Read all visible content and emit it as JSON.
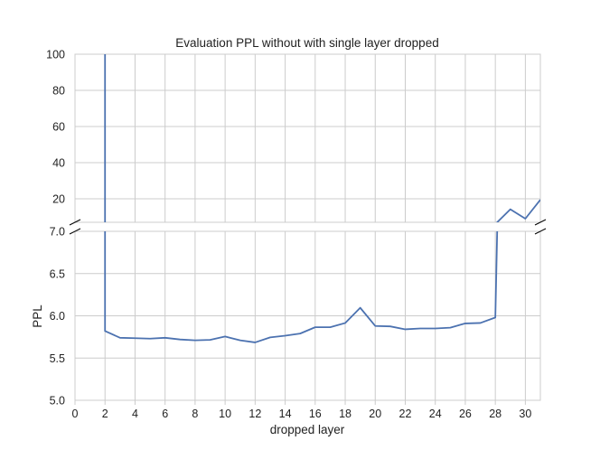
{
  "chart_data": {
    "type": "line",
    "title": "Evaluation PPL without with single layer dropped",
    "xlabel": "dropped layer",
    "ylabel": "PPL",
    "grid": true,
    "broken_y_axis": true,
    "x": [
      2,
      3,
      4,
      5,
      6,
      7,
      8,
      9,
      10,
      11,
      12,
      13,
      14,
      15,
      16,
      17,
      18,
      19,
      20,
      21,
      22,
      23,
      24,
      25,
      26,
      27,
      28,
      29,
      30,
      31
    ],
    "series": [
      {
        "color": "#4c72b0",
        "values": [
          5.82,
          5.74,
          5.735,
          5.73,
          5.74,
          5.72,
          5.71,
          5.715,
          5.755,
          5.71,
          5.685,
          5.745,
          5.765,
          5.79,
          5.865,
          5.865,
          5.915,
          6.095,
          5.88,
          5.875,
          5.84,
          5.85,
          5.85,
          5.86,
          5.91,
          5.915,
          5.98,
          14.2,
          9.0,
          19.5
        ]
      }
    ],
    "off_chart_value_at_x1": 100,
    "xlim": [
      0,
      31
    ],
    "x_ticks": [
      "0",
      "2",
      "4",
      "6",
      "8",
      "10",
      "12",
      "14",
      "16",
      "18",
      "20",
      "22",
      "24",
      "26",
      "28",
      "30"
    ],
    "top_panel": {
      "ylim": [
        7,
        100
      ],
      "y_ticks": [
        "20",
        "40",
        "60",
        "80",
        "100"
      ]
    },
    "bottom_panel": {
      "ylim": [
        5.0,
        7.0
      ],
      "y_ticks": [
        "5.0",
        "5.5",
        "6.0",
        "6.5",
        "7.0"
      ]
    }
  }
}
